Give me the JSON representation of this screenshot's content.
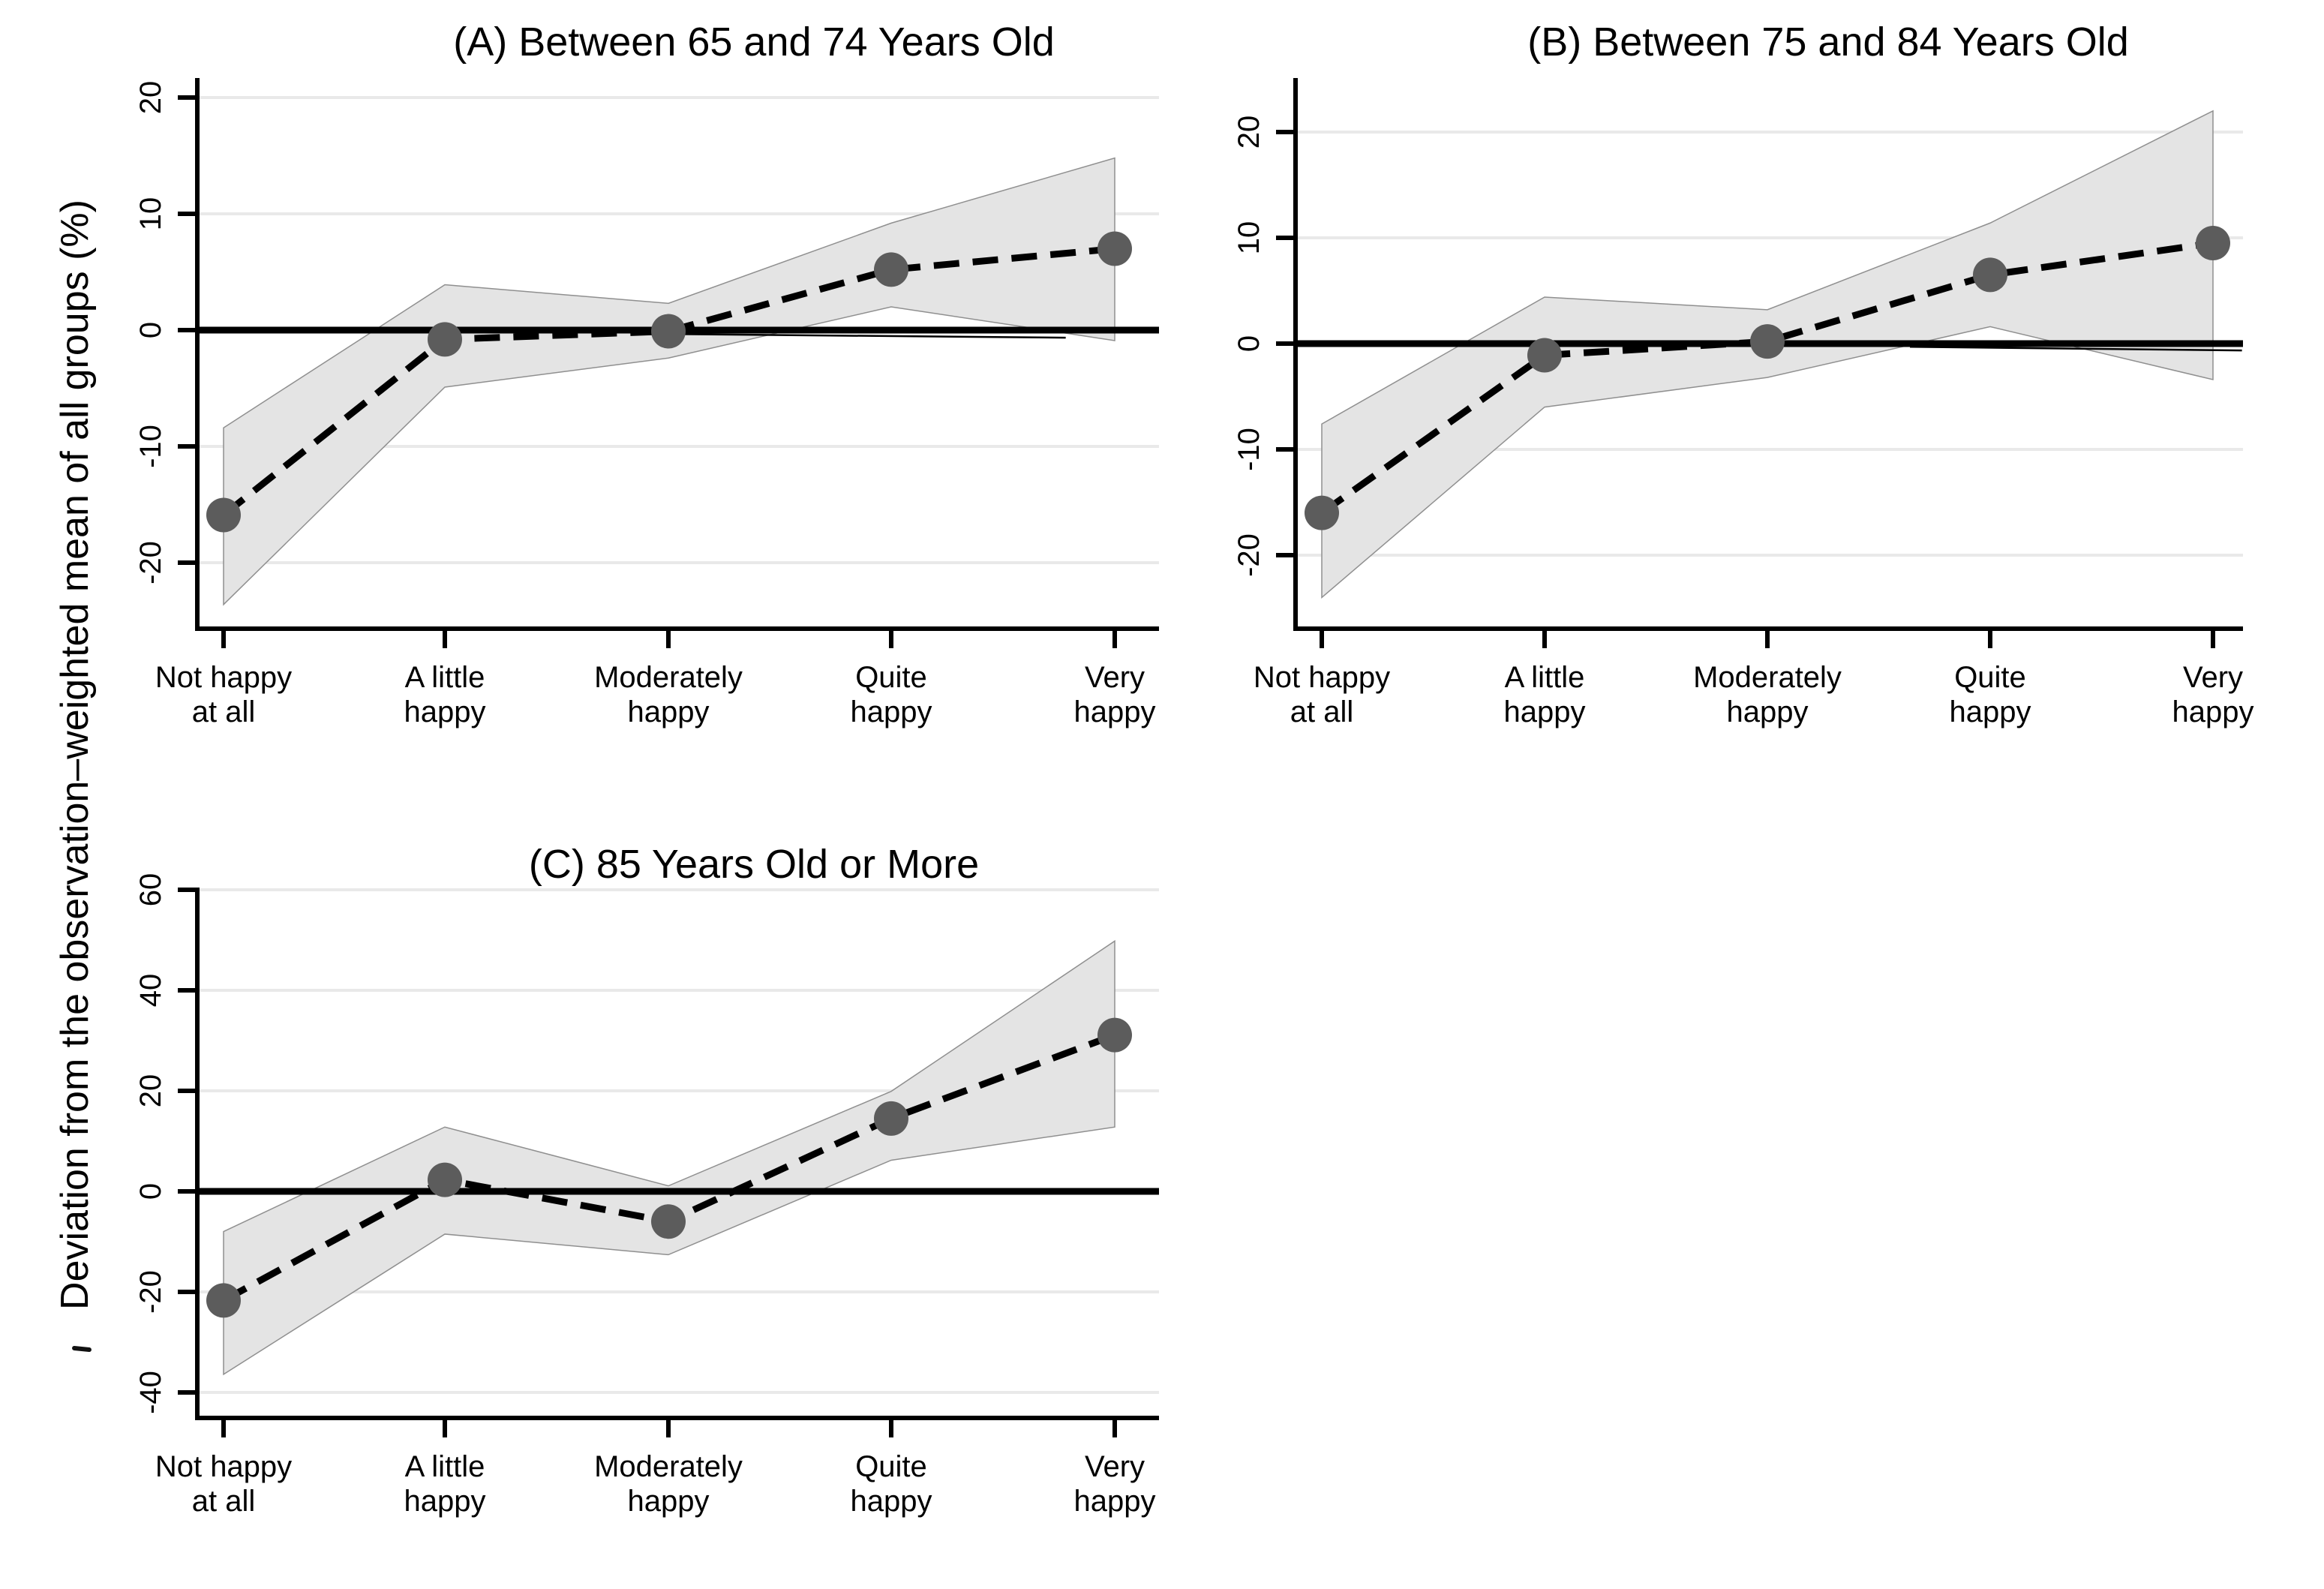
{
  "figure": {
    "ylabel": "Deviation from the observation–weighted mean of all groups (%)",
    "background": "#ffffff",
    "colors": {
      "band_fill": "#e4e4e4",
      "band_outline": "#8f8f8f",
      "marker": "#5c5c5c",
      "series_line": "#000000",
      "zero_line": "#000000",
      "gridline": "#e9e9e9",
      "axis": "#000000",
      "text": "#000000"
    }
  },
  "chart_data": [
    {
      "panel": "A",
      "type": "line",
      "title": "(A) Between 65 and 74 Years Old",
      "categories": [
        [
          "Not happy",
          "at all"
        ],
        [
          "A little",
          "happy"
        ],
        [
          "Moderately",
          "happy"
        ],
        [
          "Quite",
          "happy"
        ],
        [
          "Very",
          "happy"
        ]
      ],
      "values": [
        -15.9,
        -0.8,
        -0.1,
        5.2,
        7.0
      ],
      "ci_lower": [
        -23.6,
        -4.9,
        -2.4,
        2.0,
        -0.9
      ],
      "ci_upper": [
        -8.4,
        3.9,
        2.3,
        9.2,
        14.8
      ],
      "yticks": [
        20,
        10,
        0,
        -10,
        -20
      ],
      "ylim": [
        -25.6,
        21.7
      ],
      "zero_line": 0,
      "aux_line": {
        "x1_idx": 2.05,
        "y1": -0.35,
        "x2_idx": 3.78,
        "y2": -0.65
      },
      "grid": true,
      "line_style": "dashed",
      "marker_style": "filled-circle",
      "band": "confidence-band"
    },
    {
      "panel": "B",
      "type": "line",
      "title": "(B) Between 75 and 84 Years Old",
      "categories": [
        [
          "Not happy",
          "at all"
        ],
        [
          "A little",
          "happy"
        ],
        [
          "Moderately",
          "happy"
        ],
        [
          "Quite",
          "happy"
        ],
        [
          "Very",
          "happy"
        ]
      ],
      "values": [
        -16.0,
        -1.1,
        0.2,
        6.5,
        9.5
      ],
      "ci_lower": [
        -24.0,
        -6.0,
        -3.2,
        1.6,
        -3.4
      ],
      "ci_upper": [
        -7.6,
        4.4,
        3.2,
        11.4,
        22.0
      ],
      "yticks": [
        20,
        10,
        0,
        -10,
        -20
      ],
      "ylim": [
        -26.9,
        25.1
      ],
      "zero_line": 0,
      "aux_line": {
        "x1_idx": 2.64,
        "y1": -0.3,
        "x2_idx": 4.13,
        "y2": -0.65
      },
      "grid": true,
      "line_style": "dashed",
      "marker_style": "filled-circle",
      "band": "confidence-band"
    },
    {
      "panel": "C",
      "type": "line",
      "title": "(C) 85 Years Old or More",
      "categories": [
        [
          "Not happy",
          "at all"
        ],
        [
          "A little",
          "happy"
        ],
        [
          "Moderately",
          "happy"
        ],
        [
          "Quite",
          "happy"
        ],
        [
          "Very",
          "happy"
        ]
      ],
      "values": [
        -21.7,
        2.3,
        -6.0,
        14.5,
        31.1
      ],
      "ci_lower": [
        -36.4,
        -8.5,
        -12.6,
        6.2,
        12.8
      ],
      "ci_upper": [
        -8.0,
        12.8,
        1.1,
        19.9,
        49.8
      ],
      "yticks": [
        60,
        40,
        20,
        0,
        -20,
        -40
      ],
      "ylim": [
        -45.1,
        60.4
      ],
      "zero_line": 0,
      "aux_line": null,
      "grid": true,
      "line_style": "dashed",
      "marker_style": "filled-circle",
      "band": "confidence-band"
    }
  ]
}
